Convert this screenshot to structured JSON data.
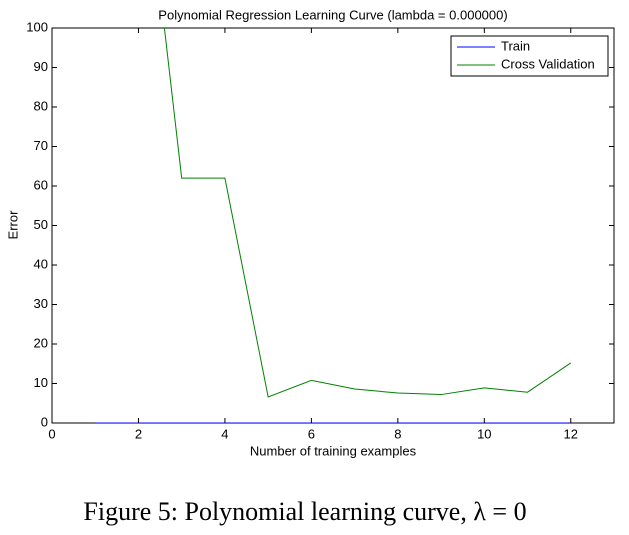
{
  "chart_data": {
    "type": "line",
    "title": "Polynomial Regression Learning Curve (lambda = 0.000000)",
    "x_label": "Number of training examples",
    "y_label": "Error",
    "x": [
      1,
      2,
      3,
      4,
      5,
      6,
      7,
      8,
      9,
      10,
      11,
      12
    ],
    "series": [
      {
        "name": "Train",
        "color": "#0000ff",
        "values": [
          0,
          0,
          0,
          0,
          0,
          0,
          0,
          0,
          0,
          0,
          0,
          0
        ]
      },
      {
        "name": "Cross Validation",
        "color": "#008000",
        "values": [
          null,
          157,
          62,
          62,
          6.6,
          10.8,
          8.6,
          7.6,
          7.2,
          8.9,
          7.8,
          15.2
        ]
      }
    ],
    "xlim": [
      0,
      13
    ],
    "xticks": [
      0,
      2,
      4,
      6,
      8,
      10,
      12
    ],
    "ylim": [
      0,
      100
    ],
    "yticks": [
      0,
      10,
      20,
      30,
      40,
      50,
      60,
      70,
      80,
      90,
      100
    ],
    "grid": false,
    "legend": "top-right"
  },
  "caption": "Figure 5: Polynomial learning curve, λ = 0"
}
